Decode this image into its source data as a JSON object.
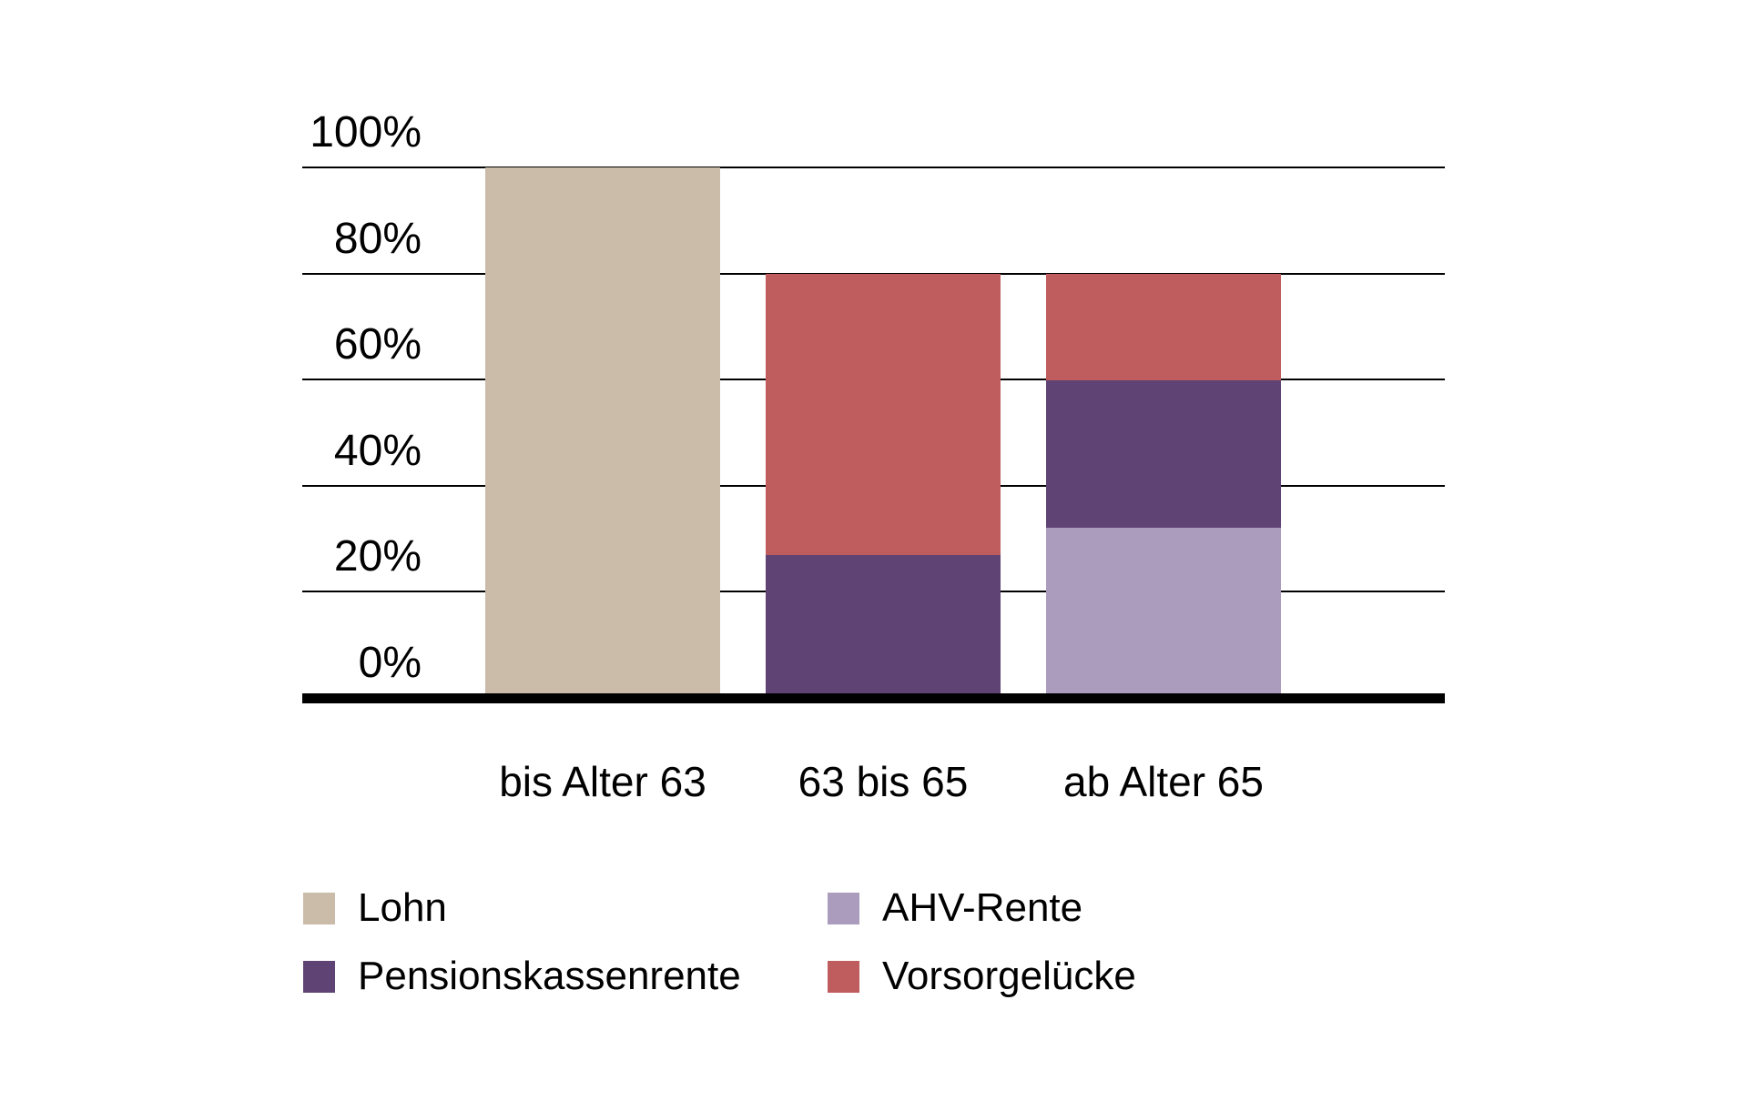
{
  "background": "#ffffff",
  "chart_data": {
    "type": "bar",
    "stacked": true,
    "title": "",
    "xlabel": "",
    "ylabel": "",
    "categories": [
      "bis Alter 63",
      "63 bis 65",
      "ab Alter 65"
    ],
    "series": [
      {
        "name": "Lohn",
        "color": "#cbbba9",
        "values": [
          100,
          0,
          0
        ]
      },
      {
        "name": "AHV-Rente",
        "color": "#ab9cbe",
        "values": [
          0,
          0,
          32
        ]
      },
      {
        "name": "Pensionskassenrente",
        "color": "#5f4374",
        "values": [
          0,
          27,
          28
        ]
      },
      {
        "name": "Vorsorgelücke",
        "color": "#bf5c5e",
        "values": [
          0,
          53,
          20
        ]
      }
    ],
    "bar_totals": [
      100,
      80,
      80
    ],
    "ylim": [
      0,
      100
    ],
    "ytick_step": 20,
    "yticks": [
      "0%",
      "20%",
      "40%",
      "60%",
      "80%",
      "100%"
    ],
    "grid": "horizontal",
    "legend_position": "bottom"
  },
  "legend": {
    "items": [
      {
        "label": "Lohn",
        "color": "#cbbba9"
      },
      {
        "label": "AHV-Rente",
        "color": "#ab9cbe"
      },
      {
        "label": "Pensionskassenrente",
        "color": "#5f4374"
      },
      {
        "label": "Vorsorgelücke",
        "color": "#bf5c5e"
      }
    ]
  },
  "colors": {
    "axis_line": "#000000",
    "grid_line": "#000000",
    "text": "#000000"
  }
}
